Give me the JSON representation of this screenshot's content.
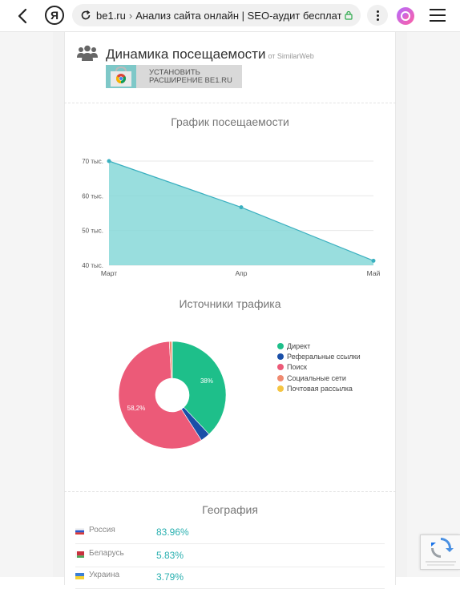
{
  "browser": {
    "url_host": "be1.ru",
    "url_separator": "›",
    "page_title": "Анализ сайта онлайн | SEO-аудит бесплатно - Be",
    "ya_label": "Я"
  },
  "section": {
    "title": "Динамика посещаемости",
    "source": "от SimilarWeb",
    "banner_line1": "УСТАНОВИТЬ",
    "banner_line2": "РАСШИРЕНИЕ BE1.RU"
  },
  "traffic_chart": {
    "title": "График посещаемости",
    "y_ticks": [
      "70 тыс.",
      "60 тыс.",
      "50 тыс.",
      "40 тыс."
    ],
    "x_ticks": [
      "Март",
      "Апр",
      "Май"
    ]
  },
  "sources_chart": {
    "title": "Источники трафика",
    "label_direct": "38%",
    "label_search": "58,2%"
  },
  "legend": [
    {
      "label": "Директ",
      "color": "#1ebf8a"
    },
    {
      "label": "Реферальные ссылки",
      "color": "#1a4fa8"
    },
    {
      "label": "Поиск",
      "color": "#ec5a78"
    },
    {
      "label": "Социальные сети",
      "color": "#f08a70"
    },
    {
      "label": "Почтовая рассылка",
      "color": "#f5c542"
    }
  ],
  "geography": {
    "title": "География",
    "rows": [
      {
        "country": "Россия",
        "pct": "83.96%"
      },
      {
        "country": "Беларусь",
        "pct": "5.83%"
      },
      {
        "country": "Украина",
        "pct": "3.79%"
      }
    ]
  },
  "chart_data": [
    {
      "type": "area",
      "title": "График посещаемости",
      "categories": [
        "Март",
        "Апр",
        "Май"
      ],
      "values": [
        70000,
        56700,
        41300
      ],
      "ylim": [
        40000,
        70000
      ],
      "y_ticks": [
        "70 тыс.",
        "60 тыс.",
        "50 тыс.",
        "40 тыс."
      ],
      "color": "#7fd6d6"
    },
    {
      "type": "pie",
      "title": "Источники трафика",
      "categories": [
        "Директ",
        "Реферальные ссылки",
        "Поиск",
        "Социальные сети",
        "Почтовая рассылка"
      ],
      "values": [
        38,
        2.9,
        58.2,
        0.8,
        0.1
      ],
      "colors": [
        "#1ebf8a",
        "#1a4fa8",
        "#ec5a78",
        "#f08a70",
        "#f5c542"
      ],
      "legend": "right"
    }
  ]
}
